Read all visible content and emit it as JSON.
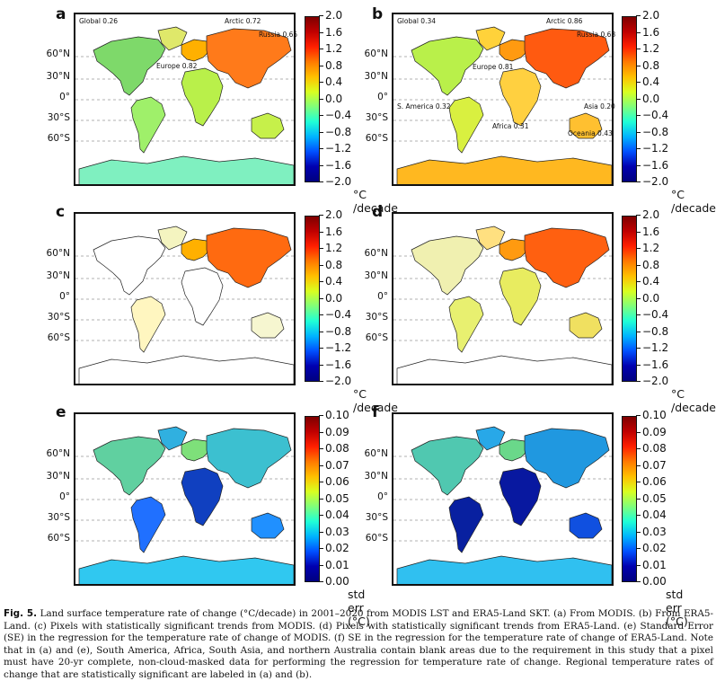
{
  "lat_labels": [
    "60°N",
    "30°N",
    "0°",
    "30°S",
    "60°S"
  ],
  "colorbars": {
    "trend": {
      "ticks": [
        "2.0",
        "1.6",
        "1.2",
        "0.8",
        "0.4",
        "0.0",
        "−0.4",
        "−0.8",
        "−1.2",
        "−1.6",
        "−2.0"
      ],
      "unit": "°C /decade",
      "colors": [
        "#7f0000",
        "#c00000",
        "#ff2000",
        "#ff7a00",
        "#ffc000",
        "#d9ff20",
        "#80ff7a",
        "#20ffd6",
        "#00b4ff",
        "#0050ff",
        "#0000b0",
        "#00007f"
      ]
    },
    "se": {
      "ticks": [
        "0.10",
        "0.09",
        "0.08",
        "0.07",
        "0.06",
        "0.05",
        "0.04",
        "0.03",
        "0.02",
        "0.01",
        "0.00"
      ],
      "unit": "std err (°C)",
      "colors": [
        "#7f0000",
        "#c00000",
        "#ff2000",
        "#ff7a00",
        "#ffc000",
        "#d9ff20",
        "#80ff7a",
        "#20ffd6",
        "#00b4ff",
        "#0050ff",
        "#0000b0",
        "#00007f"
      ]
    }
  },
  "panels": [
    {
      "id": "a",
      "letter": "a",
      "cbar": "trend",
      "style": "modis",
      "regions": [
        {
          "text": "Global 0.26"
        },
        {
          "text": "Arctic 0.72"
        },
        {
          "text": "Russia 0.65"
        },
        {
          "text": "Europe 0.82"
        }
      ]
    },
    {
      "id": "b",
      "letter": "b",
      "cbar": "trend",
      "style": "era5",
      "regions": [
        {
          "text": "Global 0.34"
        },
        {
          "text": "Arctic 0.86"
        },
        {
          "text": "Russia 0.68"
        },
        {
          "text": "Europe 0.81"
        },
        {
          "text": "Asia 0.20"
        },
        {
          "text": "S. America 0.32"
        },
        {
          "text": "Africa 0.31"
        },
        {
          "text": "Oceania 0.43"
        }
      ]
    },
    {
      "id": "c",
      "letter": "c",
      "cbar": "trend",
      "style": "sig-modis",
      "regions": []
    },
    {
      "id": "d",
      "letter": "d",
      "cbar": "trend",
      "style": "sig-era5",
      "regions": []
    },
    {
      "id": "e",
      "letter": "e",
      "cbar": "se",
      "style": "se-modis",
      "regions": []
    },
    {
      "id": "f",
      "letter": "f",
      "cbar": "se",
      "style": "se-era5",
      "regions": []
    }
  ],
  "caption": {
    "label": "Fig. 5.",
    "text": "Land surface temperature rate of change (°C/decade) in 2001–2020 from MODIS LST and ERA5-Land SKT. (a) From MODIS. (b) From ERA5-Land. (c) Pixels with statistically significant trends from MODIS. (d) Pixels with statistically significant trends from ERA5-Land. (e) Standard Error (SE) in the regression for the temperature rate of change of MODIS. (f) SE in the regression for the temperature rate of change of ERA5-Land. Note that in (a) and (e), South America, Africa, South Asia, and northern Australia contain blank areas due to the requirement in this study that a pixel must have 20-yr complete, non-cloud-masked data for performing the regression for temperature rate of change. Regional temperature rates of change that are statistically significant are labeled in (a) and (b)."
  }
}
